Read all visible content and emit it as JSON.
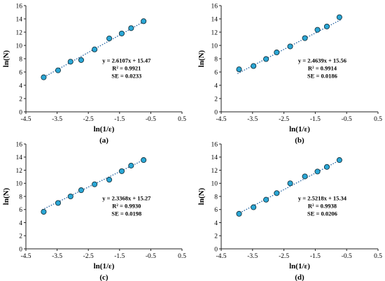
{
  "chart_data": [
    {
      "type": "scatter",
      "panel": "(a)",
      "xlabel": "ln(1/ε)",
      "ylabel": "ln(N)",
      "xlim": [
        -4.5,
        0.5
      ],
      "ylim": [
        0,
        16
      ],
      "xticks": [
        "-4.5",
        "-3.5",
        "-2.5",
        "-1.5",
        "-0.5",
        "0.5"
      ],
      "yticks": [
        "0",
        "2",
        "4",
        "6",
        "8",
        "10",
        "12",
        "14",
        "16"
      ],
      "x": [
        -3.93,
        -3.47,
        -3.07,
        -2.73,
        -2.3,
        -1.83,
        -1.43,
        -1.13,
        -0.73
      ],
      "y": [
        5.2,
        6.25,
        7.55,
        7.8,
        9.4,
        11.05,
        11.8,
        12.6,
        13.65
      ],
      "fit": {
        "slope": 2.6107,
        "intercept": 15.47,
        "style": "dotted"
      },
      "annotation": [
        "y = 2.6107x + 15.47",
        "R² = 0.9921",
        "SE = 0.0233"
      ]
    },
    {
      "type": "scatter",
      "panel": "(b)",
      "xlabel": "ln(1/ε)",
      "ylabel": "ln(N)",
      "xlim": [
        -4.5,
        0.5
      ],
      "ylim": [
        0,
        16
      ],
      "xticks": [
        "-4.5",
        "-3.5",
        "-2.5",
        "-1.5",
        "-0.5",
        "0.5"
      ],
      "yticks": [
        "0",
        "2",
        "4",
        "6",
        "8",
        "10",
        "12",
        "14",
        "16"
      ],
      "x": [
        -3.93,
        -3.47,
        -3.07,
        -2.73,
        -2.3,
        -1.83,
        -1.43,
        -1.13,
        -0.73
      ],
      "y": [
        6.4,
        6.9,
        7.95,
        8.95,
        9.85,
        11.1,
        12.35,
        12.85,
        14.25
      ],
      "fit": {
        "slope": 2.4639,
        "intercept": 15.56,
        "style": "dotted"
      },
      "annotation": [
        "y = 2.4639x + 15.56",
        "R² = 0.9914",
        "SE = 0.0186"
      ]
    },
    {
      "type": "scatter",
      "panel": "(c)",
      "xlabel": "ln(1/ε)",
      "ylabel": "ln(N)",
      "xlim": [
        -4.5,
        0.5
      ],
      "ylim": [
        0,
        16
      ],
      "xticks": [
        "-4.5",
        "-3.5",
        "-2.5",
        "-1.5",
        "-0.5",
        "0.5"
      ],
      "yticks": [
        "0",
        "2",
        "4",
        "6",
        "8",
        "10",
        "12",
        "14",
        "16"
      ],
      "x": [
        -3.93,
        -3.47,
        -3.07,
        -2.73,
        -2.3,
        -1.83,
        -1.43,
        -1.13,
        -0.73
      ],
      "y": [
        5.65,
        7.0,
        8.0,
        8.95,
        9.85,
        10.55,
        11.85,
        12.7,
        13.55
      ],
      "fit": {
        "slope": 2.3368,
        "intercept": 15.27,
        "style": "dotted"
      },
      "annotation": [
        "y = 2.3368x + 15.27",
        "R² = 0.9930",
        "SE = 0.0198"
      ]
    },
    {
      "type": "scatter",
      "panel": "(d)",
      "xlabel": "ln(1/ε)",
      "ylabel": "ln(N)",
      "xlim": [
        -4.5,
        0.5
      ],
      "ylim": [
        0,
        16
      ],
      "xticks": [
        "-4.5",
        "-3.5",
        "-2.5",
        "-1.5",
        "-0.5",
        "0.5"
      ],
      "yticks": [
        "0",
        "2",
        "4",
        "6",
        "8",
        "10",
        "12",
        "14",
        "16"
      ],
      "x": [
        -3.93,
        -3.47,
        -3.07,
        -2.73,
        -2.3,
        -1.83,
        -1.43,
        -1.13,
        -0.73
      ],
      "y": [
        5.35,
        6.35,
        7.5,
        8.5,
        10.0,
        11.05,
        11.8,
        12.5,
        13.55
      ],
      "fit": {
        "slope": 2.5218,
        "intercept": 15.34,
        "style": "dotted"
      },
      "annotation": [
        "y = 2.5218x + 15.34",
        "R² = 0.9938",
        "SE = 0.0206"
      ]
    }
  ],
  "colors": {
    "marker_fill": "#2aa7d6",
    "marker_edge": "#16343f",
    "fit_line": "#1f5f9e",
    "axis": "#222222"
  }
}
